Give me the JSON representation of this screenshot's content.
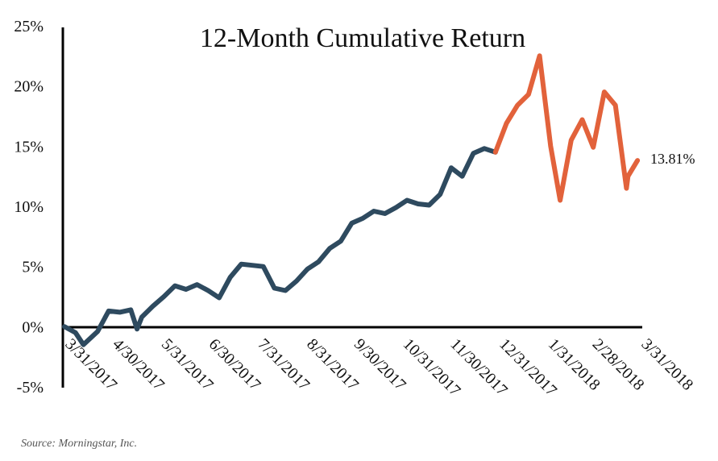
{
  "chart_data": {
    "type": "line",
    "title": "12-Month Cumulative Return",
    "xlabel": "",
    "ylabel": "",
    "ylim": [
      -5,
      25
    ],
    "y_ticks": [
      "25%",
      "20%",
      "15%",
      "10%",
      "5%",
      "0%",
      "-5%"
    ],
    "y_tick_values": [
      25,
      20,
      15,
      10,
      5,
      0,
      -5
    ],
    "x_ticks": [
      "3/31/2017",
      "4/30/2017",
      "5/31/2017",
      "6/30/2017",
      "7/31/2017",
      "8/31/2017",
      "9/30/2017",
      "10/31/2017",
      "11/30/2017",
      "12/31/2017",
      "1/31/2018",
      "2/28/2018",
      "3/31/2018"
    ],
    "end_label": "13.81%",
    "grid": false,
    "colors": {
      "period_1": "#2e4a5f",
      "period_2": "#e2623b",
      "axis": "#000000"
    },
    "series": [
      {
        "period": "2017",
        "color": "#2e4a5f",
        "x": [
          "3/31/2017",
          "4/7/2017",
          "4/12/2017",
          "4/21/2017",
          "4/28/2017",
          "5/5/2017",
          "5/12/2017",
          "5/16/2017",
          "5/19/2017",
          "5/26/2017",
          "6/2/2017",
          "6/9/2017",
          "6/16/2017",
          "6/23/2017",
          "6/30/2017",
          "7/7/2017",
          "7/14/2017",
          "7/21/2017",
          "7/28/2017",
          "8/4/2017",
          "8/11/2017",
          "8/18/2017",
          "8/25/2017",
          "9/1/2017",
          "9/8/2017",
          "9/15/2017",
          "9/22/2017",
          "9/29/2017",
          "10/6/2017",
          "10/13/2017",
          "10/20/2017",
          "10/27/2017",
          "11/3/2017",
          "11/10/2017",
          "11/17/2017",
          "11/24/2017",
          "12/1/2017",
          "12/8/2017",
          "12/15/2017",
          "12/22/2017",
          "12/29/2017"
        ],
        "values": [
          0.0,
          -0.5,
          -1.5,
          -0.4,
          1.3,
          1.2,
          1.4,
          -0.2,
          0.8,
          1.7,
          2.5,
          3.4,
          3.1,
          3.5,
          3.0,
          2.4,
          4.1,
          5.2,
          5.1,
          5.0,
          3.2,
          3.0,
          3.8,
          4.8,
          5.4,
          6.5,
          7.1,
          8.6,
          9.0,
          9.6,
          9.4,
          9.9,
          10.5,
          10.2,
          10.1,
          11.0,
          13.2,
          12.5,
          14.4,
          14.8,
          14.5
        ]
      },
      {
        "period": "2018",
        "color": "#e2623b",
        "x": [
          "12/29/2017",
          "1/5/2018",
          "1/12/2018",
          "1/19/2018",
          "1/26/2018",
          "2/2/2018",
          "2/8/2018",
          "2/15/2018",
          "2/22/2018",
          "3/1/2018",
          "3/8/2018",
          "3/15/2018",
          "3/22/2018",
          "3/23/2018",
          "3/29/2018"
        ],
        "values": [
          14.5,
          16.9,
          18.4,
          19.3,
          22.5,
          15.0,
          10.5,
          15.5,
          17.2,
          14.9,
          19.5,
          18.4,
          11.5,
          12.5,
          13.81
        ]
      }
    ]
  },
  "source": "Source: Morningstar, Inc."
}
